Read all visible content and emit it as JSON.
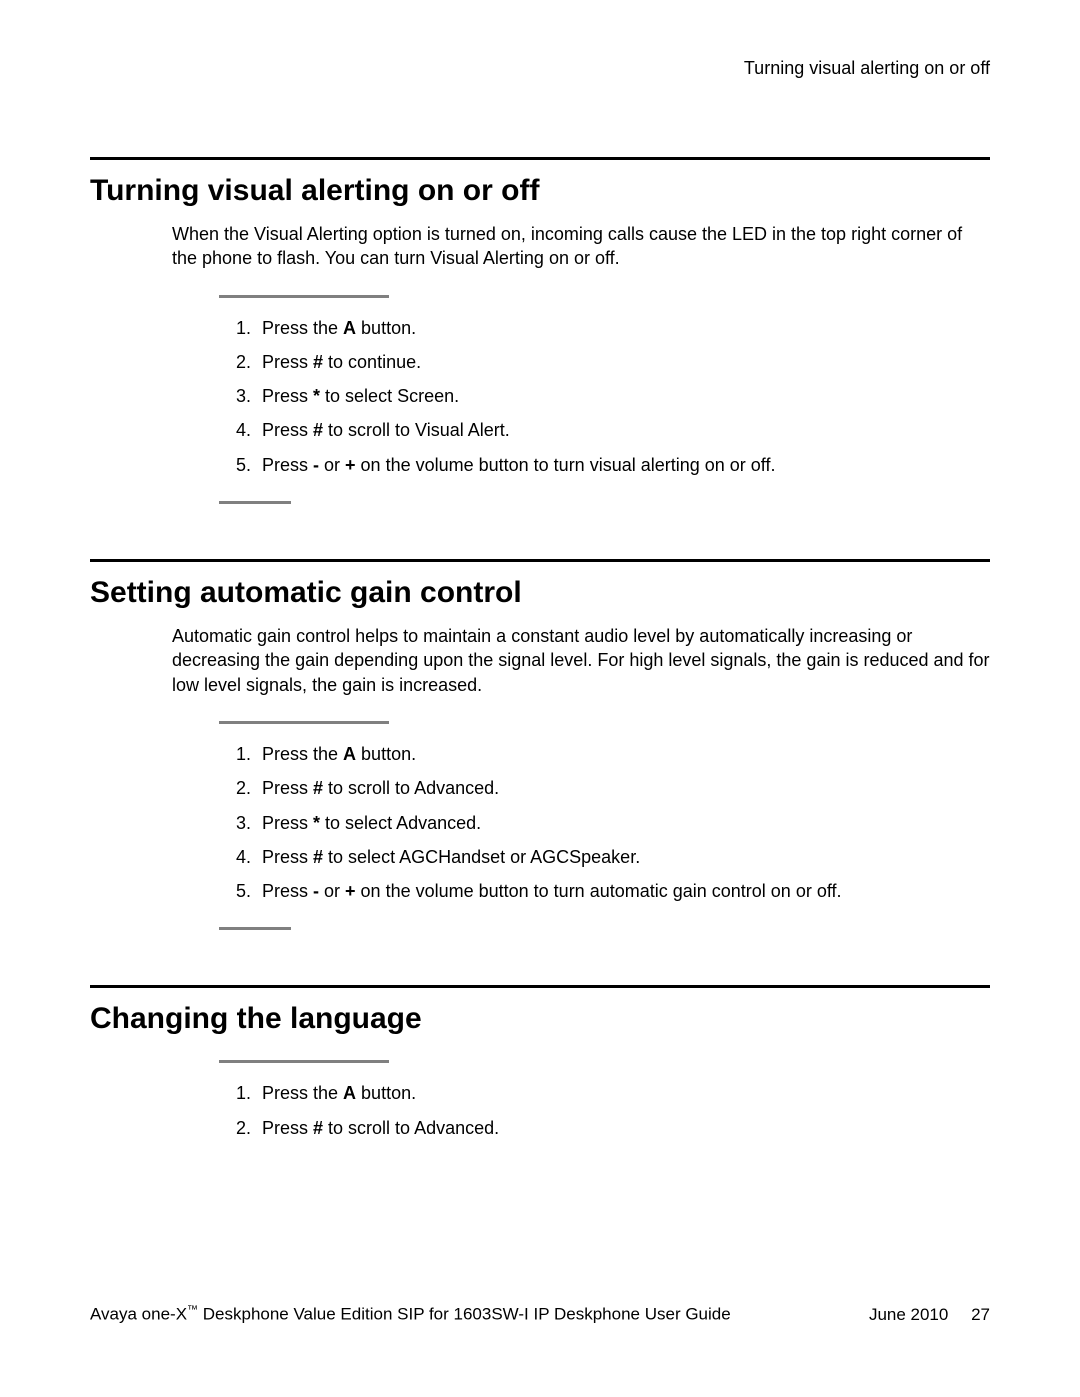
{
  "running_header": "Turning visual alerting on or off",
  "sections": [
    {
      "title": "Turning visual alerting on or off",
      "intro": "When the Visual Alerting option is turned on, incoming calls cause the LED in the top right corner of the phone to flash. You can turn Visual Alerting on or off.",
      "steps": [
        [
          {
            "t": "Press the "
          },
          {
            "t": "A",
            "b": true
          },
          {
            "t": " button."
          }
        ],
        [
          {
            "t": "Press "
          },
          {
            "t": "#",
            "b": true
          },
          {
            "t": " to continue."
          }
        ],
        [
          {
            "t": "Press "
          },
          {
            "t": "*",
            "b": true
          },
          {
            "t": " to select Screen."
          }
        ],
        [
          {
            "t": "Press "
          },
          {
            "t": "#",
            "b": true
          },
          {
            "t": " to scroll to Visual Alert."
          }
        ],
        [
          {
            "t": "Press "
          },
          {
            "t": "-",
            "b": true
          },
          {
            "t": " or "
          },
          {
            "t": "+",
            "b": true
          },
          {
            "t": " on the volume button to turn visual alerting on or off."
          }
        ]
      ]
    },
    {
      "title": "Setting automatic gain control",
      "intro": "Automatic gain control helps to maintain a constant audio level by automatically increasing or decreasing the gain depending upon the signal level. For high level signals, the gain is reduced and for low level signals, the gain is increased.",
      "steps": [
        [
          {
            "t": "Press the "
          },
          {
            "t": "A",
            "b": true
          },
          {
            "t": " button."
          }
        ],
        [
          {
            "t": "Press "
          },
          {
            "t": "#",
            "b": true
          },
          {
            "t": " to scroll to Advanced."
          }
        ],
        [
          {
            "t": "Press "
          },
          {
            "t": "*",
            "b": true
          },
          {
            "t": " to select Advanced."
          }
        ],
        [
          {
            "t": "Press "
          },
          {
            "t": "#",
            "b": true
          },
          {
            "t": " to select AGCHandset or AGCSpeaker."
          }
        ],
        [
          {
            "t": "Press "
          },
          {
            "t": "-",
            "b": true
          },
          {
            "t": " or "
          },
          {
            "t": "+",
            "b": true
          },
          {
            "t": " on the volume button to turn automatic gain control on or off."
          }
        ]
      ]
    },
    {
      "title": "Changing the language",
      "intro": "",
      "steps": [
        [
          {
            "t": "Press the "
          },
          {
            "t": "A",
            "b": true
          },
          {
            "t": " button."
          }
        ],
        [
          {
            "t": "Press "
          },
          {
            "t": "#",
            "b": true
          },
          {
            "t": " to scroll to Advanced."
          }
        ]
      ]
    }
  ],
  "footer": {
    "product_prefix": "Avaya one-X",
    "tm": "™",
    "product_suffix": " Deskphone Value Edition SIP for 1603SW-I IP Deskphone User Guide",
    "date": "June 2010",
    "page_number": "27"
  }
}
